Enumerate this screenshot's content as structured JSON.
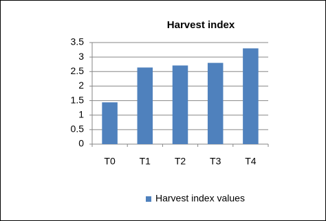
{
  "chart_data": {
    "type": "bar",
    "title": "Harvest index",
    "categories": [
      "T0",
      "T1",
      "T2",
      "T3",
      "T4"
    ],
    "series": [
      {
        "name": "Harvest index values",
        "color": "#4f81bd",
        "values": [
          1.44,
          2.64,
          2.71,
          2.8,
          3.3
        ]
      }
    ],
    "ylim": [
      0,
      3.5
    ],
    "yticks": [
      0,
      0.5,
      1,
      1.5,
      2,
      2.5,
      3,
      3.5
    ],
    "grid": true,
    "legend": "bottom"
  }
}
